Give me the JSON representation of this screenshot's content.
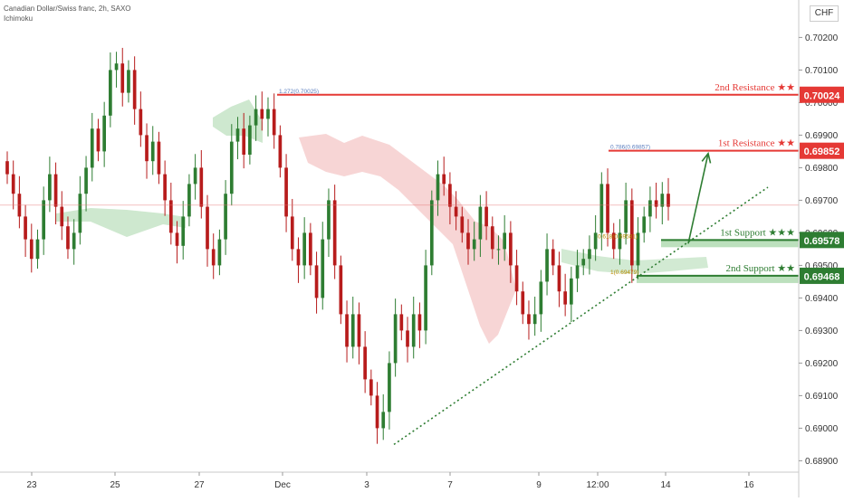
{
  "header": {
    "symbol_title": "Canadian Dollar/Swiss franc, 2h, SAXO",
    "indicator": "Ichimoku",
    "currency": "CHF"
  },
  "chart_data": {
    "type": "candlestick",
    "symbol": "CADCHF",
    "timeframe": "2h",
    "x_tick_labels": [
      "23",
      "25",
      "27",
      "Dec",
      "3",
      "7",
      "9",
      "12:00",
      "14",
      "16"
    ],
    "y_ticks": [
      0.689,
      0.69,
      0.691,
      0.692,
      0.693,
      0.694,
      0.695,
      0.696,
      0.697,
      0.698,
      0.699,
      0.7,
      0.701,
      0.702,
      0.703
    ],
    "y_tick_labels": [
      "0.68900",
      "0.69000",
      "0.69100",
      "0.69200",
      "0.69300",
      "0.69400",
      "0.69500",
      "0.69600",
      "0.69700",
      "0.69800",
      "0.69900",
      "0.70000",
      "0.70100",
      "0.70200",
      "0.70300"
    ],
    "ylim": [
      0.68865,
      0.70315
    ],
    "closes": [
      0.6978,
      0.6972,
      0.6965,
      0.6958,
      0.6952,
      0.6958,
      0.697,
      0.6978,
      0.6968,
      0.6962,
      0.6955,
      0.696,
      0.6972,
      0.698,
      0.6992,
      0.6985,
      0.6996,
      0.701,
      0.7012,
      0.7003,
      0.701,
      0.6998,
      0.699,
      0.6982,
      0.6988,
      0.6978,
      0.697,
      0.696,
      0.6956,
      0.6965,
      0.6975,
      0.698,
      0.6968,
      0.6955,
      0.695,
      0.6958,
      0.6972,
      0.6988,
      0.6992,
      0.6984,
      0.6993,
      0.6998,
      0.6995,
      0.6998,
      0.699,
      0.698,
      0.6965,
      0.6955,
      0.695,
      0.696,
      0.695,
      0.694,
      0.6958,
      0.697,
      0.695,
      0.6935,
      0.6925,
      0.6935,
      0.6925,
      0.6915,
      0.691,
      0.69,
      0.6905,
      0.692,
      0.6935,
      0.693,
      0.6925,
      0.6935,
      0.693,
      0.695,
      0.697,
      0.6978,
      0.6975,
      0.6968,
      0.6965,
      0.696,
      0.6955,
      0.6958,
      0.6968,
      0.6962,
      0.6955,
      0.6955,
      0.696,
      0.695,
      0.6942,
      0.6935,
      0.6932,
      0.6935,
      0.6945,
      0.6955,
      0.695,
      0.6942,
      0.6938,
      0.6946,
      0.695,
      0.6952,
      0.6955,
      0.696,
      0.6975,
      0.696,
      0.6955,
      0.696,
      0.697,
      0.695,
      0.696,
      0.6965,
      0.697,
      0.6968,
      0.6972,
      0.6968
    ],
    "ichimoku_cloud_color": "#ec9a9a",
    "levels": [
      {
        "label": "2nd Resistance",
        "stars": "★★",
        "value": 0.70024,
        "value_label": "0.70024",
        "kind": "resistance",
        "color": "#e53935",
        "fib": "1.272(0.70025)"
      },
      {
        "label": "1st Resistance",
        "stars": "★★",
        "value": 0.69852,
        "value_label": "0.69852",
        "kind": "resistance",
        "color": "#e53935",
        "fib": "0.786(0.69857)"
      },
      {
        "label": "1st Support",
        "stars": "★★★",
        "value": 0.69578,
        "value_label": "0.69578",
        "kind": "support",
        "color": "#2e7d32",
        "fib": "0.618(0.69581)"
      },
      {
        "label": "2nd Support",
        "stars": "★★",
        "value": 0.69468,
        "value_label": "0.69468",
        "kind": "support",
        "color": "#2e7d32",
        "fib": "1(0.69479)"
      }
    ],
    "trendline": {
      "style": "dotted",
      "color": "#2e7d32",
      "from": {
        "x_label": "3",
        "y": 0.6895
      },
      "to": {
        "x_label": "16",
        "y": 0.6974
      }
    },
    "projection_arrow": {
      "color": "#2e7d32",
      "from": 0.69578,
      "to": 0.69852
    },
    "up_color": "#2e7d32",
    "down_color": "#b71c1c"
  }
}
